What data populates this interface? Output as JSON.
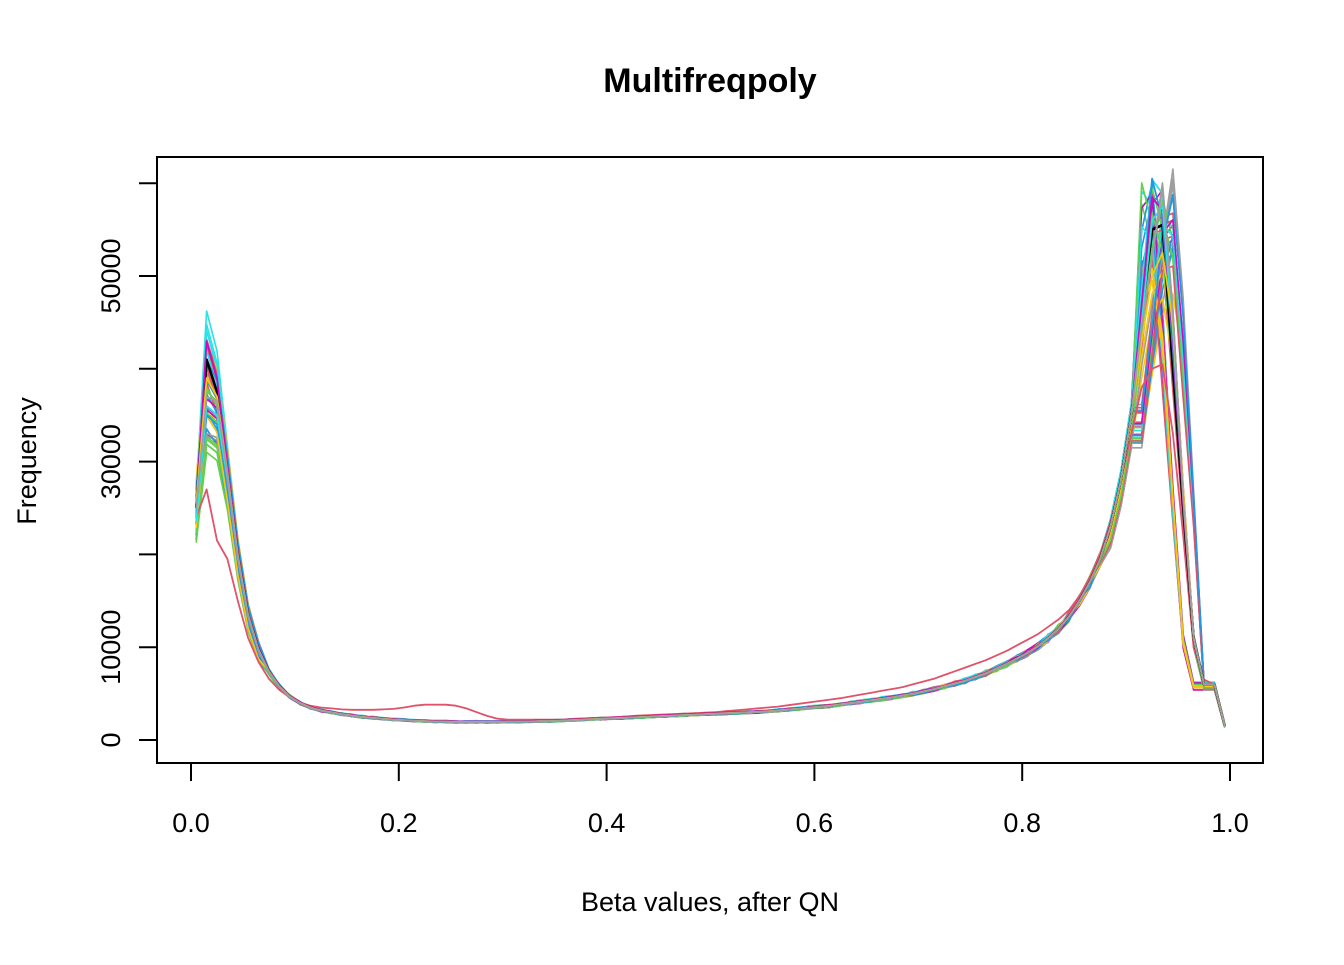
{
  "chart_data": {
    "type": "line",
    "title": "Multifreqpoly",
    "xlabel": "Beta values, after QN",
    "ylabel": "Frequency",
    "xlim": [
      0.0,
      1.0
    ],
    "ylim": [
      0,
      60000
    ],
    "x_ticks": [
      "0.0",
      "0.2",
      "0.4",
      "0.6",
      "0.8",
      "1.0"
    ],
    "y_ticks": [
      "0",
      "10000",
      "30000",
      "50000"
    ],
    "grid": false,
    "legend": "none",
    "x": [
      0.005,
      0.015,
      0.025,
      0.035,
      0.045,
      0.055,
      0.065,
      0.075,
      0.085,
      0.095,
      0.105,
      0.115,
      0.125,
      0.135,
      0.145,
      0.155,
      0.165,
      0.175,
      0.185,
      0.195,
      0.205,
      0.215,
      0.225,
      0.235,
      0.245,
      0.255,
      0.265,
      0.275,
      0.285,
      0.295,
      0.305,
      0.315,
      0.325,
      0.335,
      0.345,
      0.355,
      0.365,
      0.375,
      0.385,
      0.395,
      0.405,
      0.415,
      0.425,
      0.435,
      0.445,
      0.455,
      0.465,
      0.475,
      0.485,
      0.495,
      0.505,
      0.515,
      0.525,
      0.535,
      0.545,
      0.555,
      0.565,
      0.575,
      0.585,
      0.595,
      0.605,
      0.615,
      0.625,
      0.635,
      0.645,
      0.655,
      0.665,
      0.675,
      0.685,
      0.695,
      0.705,
      0.715,
      0.725,
      0.735,
      0.745,
      0.755,
      0.765,
      0.775,
      0.785,
      0.795,
      0.805,
      0.815,
      0.825,
      0.835,
      0.845,
      0.855,
      0.865,
      0.875,
      0.885,
      0.895,
      0.905,
      0.915,
      0.925,
      0.935,
      0.945,
      0.955,
      0.965,
      0.975,
      0.985,
      0.995
    ],
    "series_count": 60,
    "series": [
      {
        "color": "#DF536B",
        "values": [
          24000,
          27000,
          21500,
          19500,
          15000,
          11000,
          8400,
          6600,
          5400,
          4600,
          4000,
          3700,
          3500,
          3400,
          3300,
          3250,
          3250,
          3250,
          3300,
          3350,
          3500,
          3700,
          3800,
          3800,
          3800,
          3700,
          3400,
          3000,
          2600,
          2300,
          2200,
          2200,
          2200,
          2200,
          2200,
          2200,
          2250,
          2300,
          2350,
          2400,
          2450,
          2500,
          2600,
          2650,
          2700,
          2750,
          2800,
          2850,
          2900,
          2950,
          3000,
          3100,
          3200,
          3300,
          3400,
          3500,
          3600,
          3750,
          3900,
          4050,
          4200,
          4350,
          4500,
          4700,
          4900,
          5100,
          5300,
          5500,
          5700,
          6000,
          6300,
          6600,
          7000,
          7400,
          7800,
          8200,
          8600,
          9100,
          9600,
          10200,
          10800,
          11400,
          12200,
          13000,
          14000,
          15500,
          17500,
          20000,
          23500,
          28000,
          33000,
          38000,
          40000,
          40500,
          33000,
          22000,
          10000,
          6500,
          6000,
          1500
        ]
      },
      {
        "color": "#000000",
        "values": [
          25000,
          41000,
          37500,
          29000,
          20000,
          13500,
          9800,
          7400,
          5800,
          4700,
          4000,
          3500,
          3200,
          3000,
          2800,
          2650,
          2500,
          2400,
          2300,
          2200,
          2150,
          2100,
          2050,
          2000,
          2000,
          1950,
          1950,
          1950,
          1950,
          1950,
          2000,
          2000,
          2000,
          2050,
          2050,
          2100,
          2150,
          2200,
          2250,
          2300,
          2350,
          2400,
          2450,
          2500,
          2550,
          2600,
          2650,
          2700,
          2750,
          2800,
          2850,
          2900,
          2950,
          3000,
          3050,
          3100,
          3200,
          3300,
          3400,
          3500,
          3600,
          3700,
          3850,
          4000,
          4150,
          4300,
          4450,
          4600,
          4800,
          5000,
          5250,
          5500,
          5800,
          6100,
          6400,
          6800,
          7200,
          7700,
          8200,
          8800,
          9400,
          10100,
          11000,
          12000,
          13300,
          15000,
          17000,
          19500,
          23000,
          28000,
          35000,
          45000,
          55000,
          55500,
          40000,
          25000,
          11000,
          6000,
          6000,
          1500
        ]
      },
      {
        "color": "#2297E6",
        "values": [
          24000,
          35000,
          34000,
          28000,
          19500,
          13200,
          9600,
          7300,
          5700,
          4600,
          3950,
          3450,
          3150,
          2950,
          2750,
          2600,
          2450,
          2350,
          2250,
          2150,
          2100,
          2050,
          2000,
          1950,
          1950,
          1900,
          1900,
          1900,
          1900,
          1900,
          1950,
          1950,
          1950,
          2000,
          2000,
          2050,
          2100,
          2150,
          2200,
          2250,
          2300,
          2350,
          2400,
          2450,
          2500,
          2550,
          2600,
          2650,
          2700,
          2750,
          2800,
          2850,
          2900,
          2950,
          3000,
          3050,
          3150,
          3250,
          3350,
          3450,
          3550,
          3650,
          3800,
          3950,
          4100,
          4250,
          4400,
          4550,
          4750,
          4950,
          5200,
          5450,
          5750,
          6050,
          6350,
          6750,
          7150,
          7650,
          8150,
          8750,
          9350,
          10050,
          10950,
          11950,
          13250,
          14950,
          16950,
          19450,
          22950,
          27950,
          34950,
          46000,
          60500,
          56000,
          42000,
          26000,
          11000,
          6000,
          6000,
          1500
        ]
      },
      {
        "color": "#61D04F",
        "values": [
          25000,
          38000,
          36000,
          28500,
          19800,
          13400,
          9700,
          7350,
          5750,
          4650,
          3980,
          3480,
          3180,
          2980,
          2780,
          2630,
          2480,
          2380,
          2280,
          2180,
          2130,
          2080,
          2030,
          1980,
          1980,
          1930,
          1930,
          1930,
          1930,
          1930,
          1980,
          1980,
          1980,
          2030,
          2030,
          2080,
          2130,
          2180,
          2230,
          2280,
          2330,
          2380,
          2430,
          2480,
          2530,
          2580,
          2630,
          2680,
          2730,
          2780,
          2830,
          2880,
          2930,
          2980,
          3030,
          3080,
          3180,
          3280,
          3380,
          3480,
          3580,
          3680,
          3830,
          3980,
          4130,
          4280,
          4430,
          4580,
          4780,
          4980,
          5230,
          5480,
          5780,
          6080,
          6380,
          6780,
          7180,
          7680,
          8180,
          8780,
          9380,
          10080,
          10980,
          11980,
          13280,
          14980,
          16980,
          19480,
          22980,
          27980,
          34980,
          44000,
          53000,
          58000,
          45000,
          26000,
          11000,
          6000,
          6000,
          1500
        ]
      },
      {
        "color": "#CD0BBC",
        "values": [
          25000,
          43000,
          39000,
          29500,
          20200,
          13600,
          9850,
          7450,
          5850,
          4750,
          4050,
          3550,
          3250,
          3050,
          2850,
          2700,
          2550,
          2450,
          2350,
          2250,
          2200,
          2150,
          2100,
          2050,
          2050,
          2000,
          2000,
          2000,
          2000,
          2000,
          2050,
          2050,
          2050,
          2100,
          2100,
          2150,
          2200,
          2250,
          2300,
          2350,
          2400,
          2450,
          2500,
          2550,
          2600,
          2650,
          2700,
          2750,
          2800,
          2850,
          2900,
          2950,
          3000,
          3050,
          3100,
          3150,
          3250,
          3350,
          3450,
          3550,
          3650,
          3750,
          3900,
          4050,
          4200,
          4350,
          4500,
          4650,
          4850,
          5050,
          5300,
          5550,
          5850,
          6150,
          6450,
          6850,
          7250,
          7750,
          8250,
          8850,
          9450,
          10150,
          11050,
          12050,
          13350,
          15050,
          17050,
          19550,
          23050,
          28050,
          35050,
          47000,
          58500,
          57000,
          43000,
          25500,
          11000,
          6000,
          6000,
          1500
        ]
      },
      {
        "color": "#28E2E5",
        "values": [
          23500,
          36000,
          35000,
          28200,
          19600,
          13300,
          9650,
          7320,
          5720,
          4620,
          3960,
          3460,
          3160,
          2960,
          2760,
          2610,
          2460,
          2360,
          2260,
          2160,
          2110,
          2060,
          2010,
          1960,
          1960,
          1910,
          1910,
          1910,
          1910,
          1910,
          1960,
          1960,
          1960,
          2010,
          2010,
          2060,
          2110,
          2160,
          2210,
          2260,
          2310,
          2360,
          2410,
          2460,
          2510,
          2560,
          2610,
          2660,
          2710,
          2760,
          2810,
          2860,
          2910,
          2960,
          3010,
          3060,
          3160,
          3260,
          3360,
          3460,
          3560,
          3660,
          3810,
          3960,
          4110,
          4260,
          4410,
          4560,
          4760,
          4960,
          5210,
          5460,
          5760,
          6060,
          6360,
          6760,
          7160,
          7660,
          8160,
          8760,
          9360,
          10060,
          10960,
          11960,
          13260,
          14960,
          16960,
          19460,
          22960,
          27960,
          34960,
          45000,
          56000,
          57500,
          44000,
          26500,
          11000,
          6000,
          6000,
          1500
        ]
      },
      {
        "color": "#F5C710",
        "values": [
          25500,
          39000,
          37000,
          28800,
          19900,
          13450,
          9720,
          7380,
          5780,
          4680,
          3990,
          3490,
          3190,
          2990,
          2790,
          2640,
          2490,
          2390,
          2290,
          2190,
          2140,
          2090,
          2040,
          1990,
          1990,
          1940,
          1940,
          1940,
          1940,
          1940,
          1990,
          1990,
          1990,
          2040,
          2040,
          2090,
          2140,
          2190,
          2240,
          2290,
          2340,
          2390,
          2440,
          2490,
          2540,
          2590,
          2640,
          2690,
          2740,
          2790,
          2840,
          2890,
          2940,
          2990,
          3040,
          3090,
          3190,
          3290,
          3390,
          3490,
          3590,
          3690,
          3840,
          3990,
          4140,
          4290,
          4440,
          4590,
          4790,
          4990,
          5240,
          5490,
          5790,
          6090,
          6390,
          6790,
          7190,
          7690,
          8190,
          8790,
          9390,
          10090,
          10990,
          11990,
          13290,
          14990,
          16990,
          19490,
          22990,
          27990,
          34990,
          43000,
          50000,
          52500,
          45000,
          27000,
          11000,
          6000,
          6000,
          1500
        ]
      },
      {
        "color": "#9E9E9E",
        "values": [
          25000,
          37000,
          36500,
          28600,
          19700,
          13350,
          9680,
          7340,
          5740,
          4640,
          3970,
          3470,
          3170,
          2970,
          2770,
          2620,
          2470,
          2370,
          2270,
          2170,
          2120,
          2070,
          2020,
          1970,
          1970,
          1920,
          1920,
          1920,
          1920,
          1920,
          1970,
          1970,
          1970,
          2020,
          2020,
          2070,
          2120,
          2170,
          2220,
          2270,
          2320,
          2370,
          2420,
          2470,
          2520,
          2570,
          2620,
          2670,
          2720,
          2770,
          2820,
          2870,
          2920,
          2970,
          3020,
          3070,
          3170,
          3270,
          3370,
          3470,
          3570,
          3670,
          3820,
          3970,
          4120,
          4270,
          4420,
          4570,
          4770,
          4970,
          5220,
          5470,
          5770,
          6070,
          6370,
          6770,
          7170,
          7670,
          8170,
          8770,
          9370,
          10070,
          10970,
          11970,
          13270,
          14970,
          16970,
          19470,
          22970,
          27970,
          34970,
          44500,
          52000,
          59500,
          46000,
          26000,
          11000,
          6000,
          6000,
          1500
        ]
      }
    ]
  }
}
